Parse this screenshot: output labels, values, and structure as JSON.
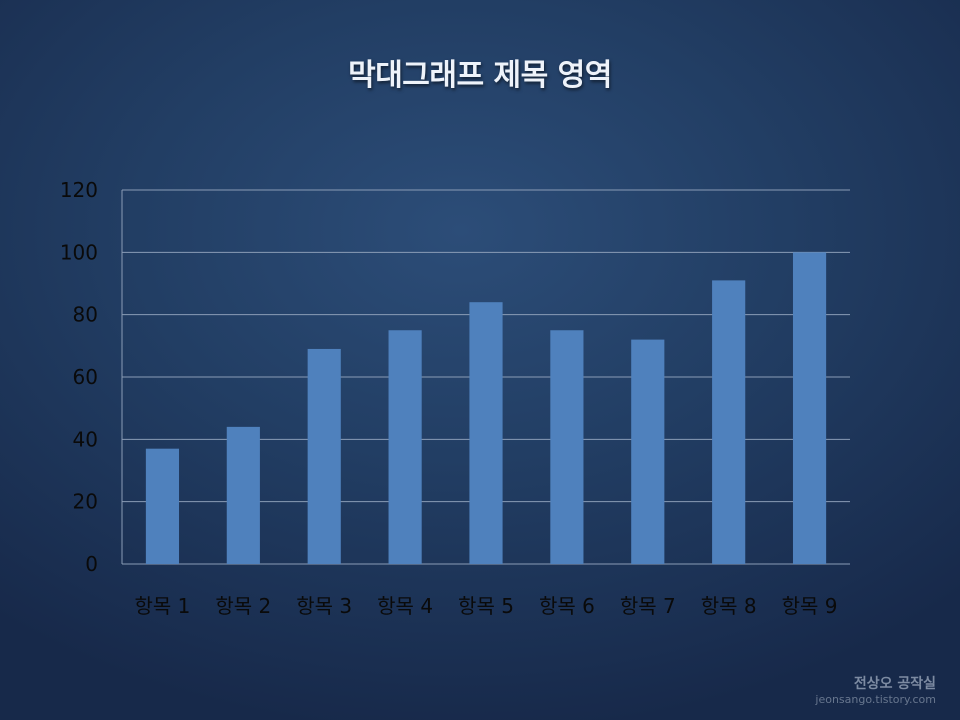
{
  "slide": {
    "title": "막대그래프 제목 영역"
  },
  "chart_data": {
    "type": "bar",
    "categories": [
      "항목 1",
      "항목 2",
      "항목 3",
      "항목 4",
      "항목 5",
      "항목 6",
      "항목 7",
      "항목 8",
      "항목 9"
    ],
    "series": [
      {
        "values": [
          37,
          44,
          69,
          75,
          84,
          75,
          72,
          91,
          100
        ]
      }
    ],
    "ylim": [
      0,
      120
    ],
    "yticks": [
      0,
      20,
      40,
      60,
      80,
      100,
      120
    ],
    "grid": true,
    "legend": "none",
    "colors": {
      "bar": "#4f81bd",
      "grid": "#8a9cb6",
      "axis_text": "#0a0a0a"
    }
  },
  "watermark": {
    "main": "전상오 공작실",
    "sub": "jeonsango.tistory.com"
  }
}
